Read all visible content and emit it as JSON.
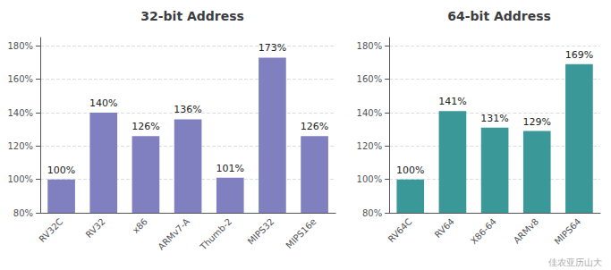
{
  "chart_data": [
    {
      "type": "bar",
      "title": "32-bit Address",
      "categories": [
        "RV32C",
        "RV32",
        "x86",
        "ARMv7-A",
        "Thumb-2",
        "MIPS32",
        "MIPS16e"
      ],
      "values": [
        100,
        140,
        126,
        136,
        101,
        173,
        126
      ],
      "value_labels": [
        "100%",
        "140%",
        "126%",
        "136%",
        "101%",
        "173%",
        "126%"
      ],
      "color": "#8080c0",
      "ylim": [
        80,
        185
      ],
      "yticks": [
        {
          "value": 80,
          "label": "80%"
        },
        {
          "value": 100,
          "label": "100%"
        },
        {
          "value": 120,
          "label": "120%"
        },
        {
          "value": 140,
          "label": "140%"
        },
        {
          "value": 160,
          "label": "160%"
        },
        {
          "value": 180,
          "label": "180%"
        }
      ],
      "grid": true,
      "data_labels": true
    },
    {
      "type": "bar",
      "title": "64-bit Address",
      "categories": [
        "RV64C",
        "RV64",
        "X86-64",
        "ARMv8",
        "MIPS64"
      ],
      "values": [
        100,
        141,
        131,
        129,
        169
      ],
      "value_labels": [
        "100%",
        "141%",
        "131%",
        "129%",
        "169%"
      ],
      "color": "#3a9898",
      "ylim": [
        80,
        185
      ],
      "yticks": [
        {
          "value": 80,
          "label": "80%"
        },
        {
          "value": 100,
          "label": "100%"
        },
        {
          "value": 120,
          "label": "120%"
        },
        {
          "value": 140,
          "label": "140%"
        },
        {
          "value": 160,
          "label": "160%"
        },
        {
          "value": 180,
          "label": "180%"
        }
      ],
      "grid": true,
      "data_labels": true,
      "annotation": "佳农亚历山大"
    }
  ]
}
